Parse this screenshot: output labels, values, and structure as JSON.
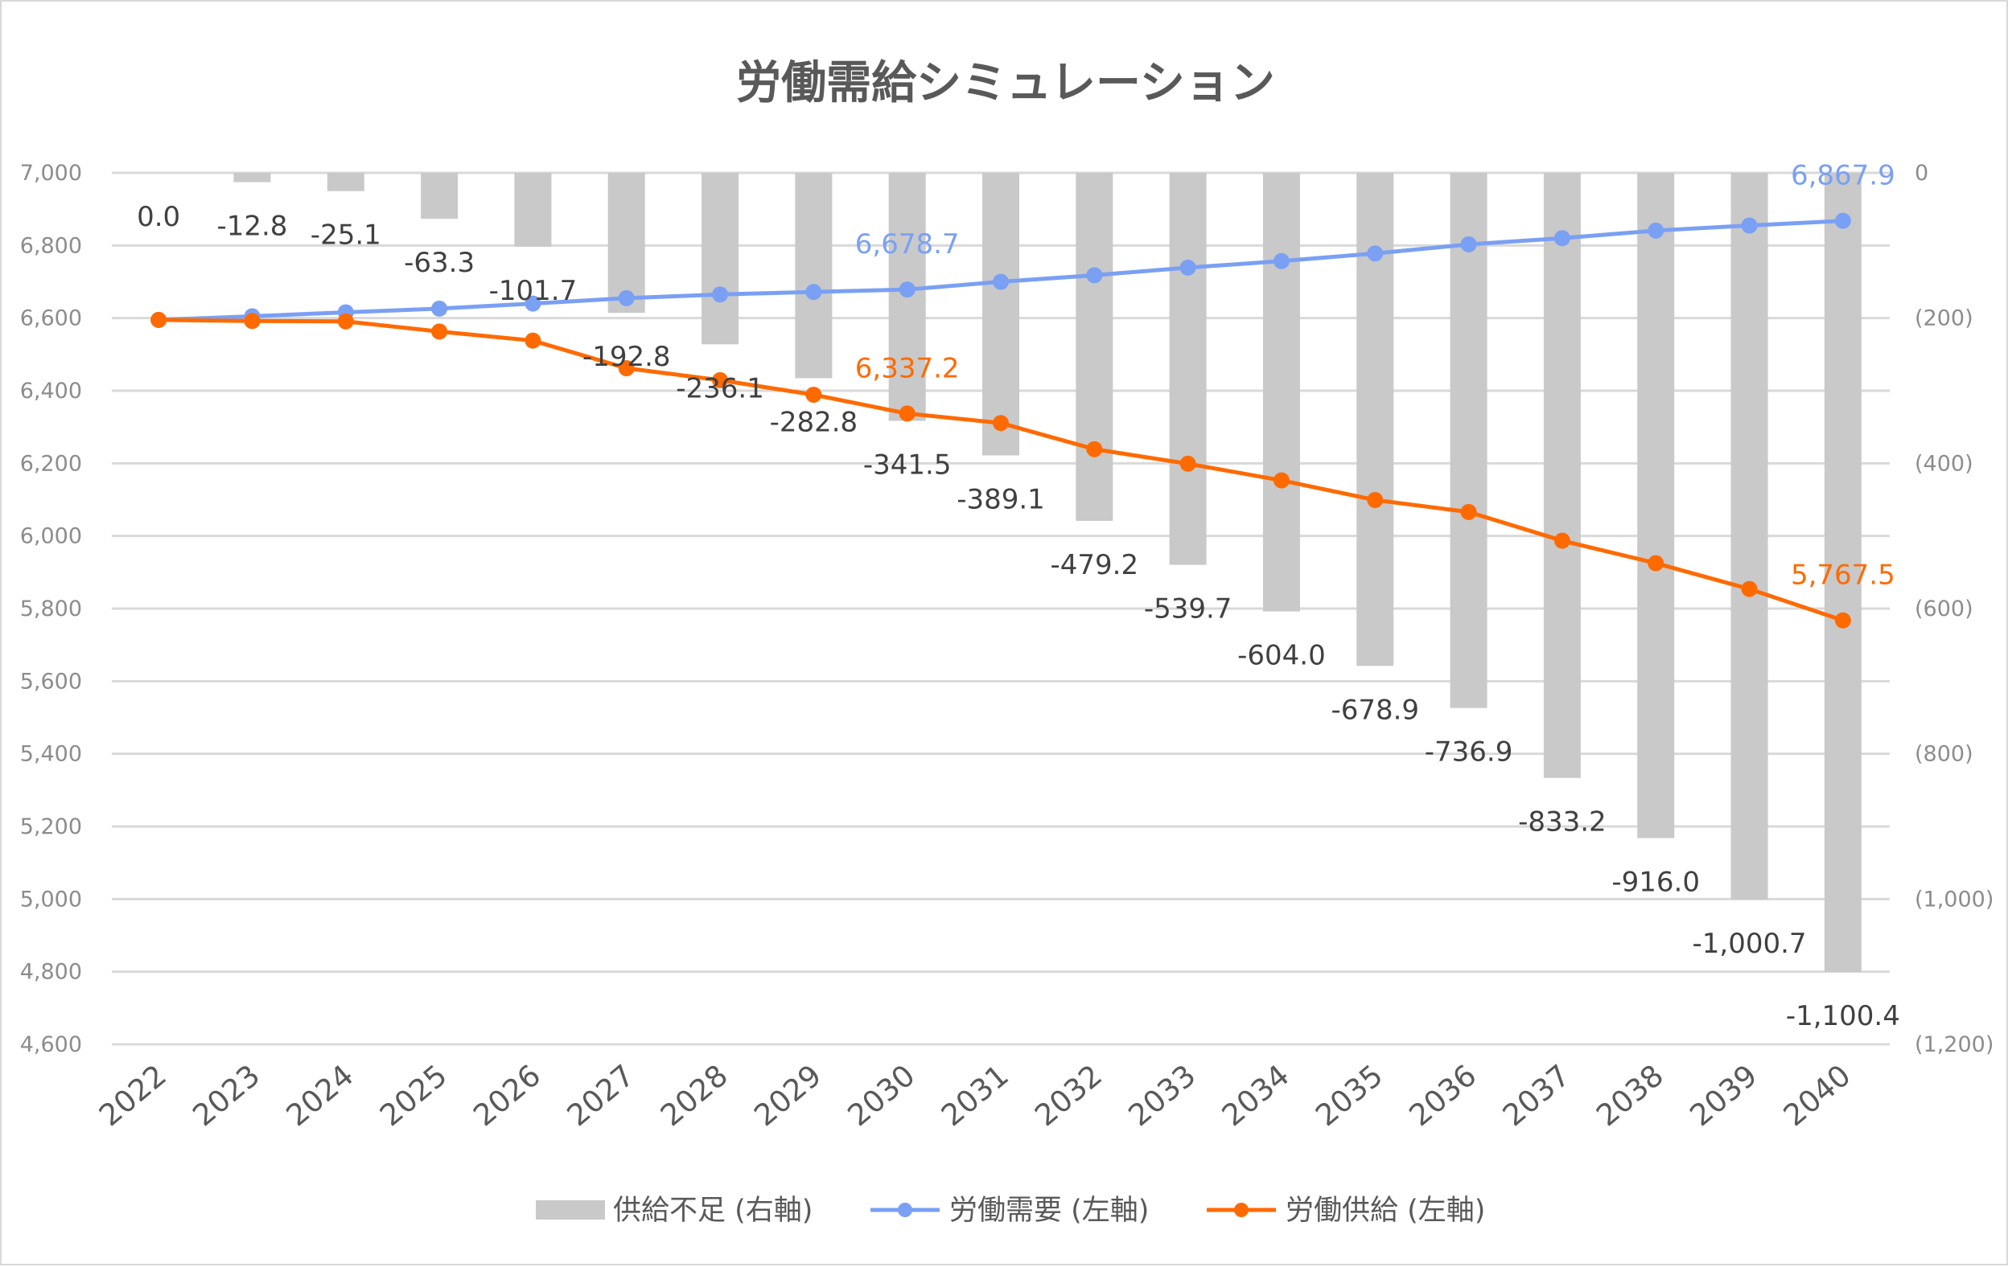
{
  "chart_data": {
    "type": "bar+line",
    "title": "労働需給シミュレーション",
    "categories": [
      "2022",
      "2023",
      "2024",
      "2025",
      "2026",
      "2027",
      "2028",
      "2029",
      "2030",
      "2031",
      "2032",
      "2033",
      "2034",
      "2035",
      "2036",
      "2037",
      "2038",
      "2039",
      "2040"
    ],
    "series": [
      {
        "name": "供給不足 (右軸)",
        "type": "bar",
        "axis": "right",
        "color": "#c9c9c9",
        "values": [
          0.0,
          -12.8,
          -25.1,
          -63.3,
          -101.7,
          -192.8,
          -236.1,
          -282.8,
          -341.5,
          -389.1,
          -479.2,
          -539.7,
          -604.0,
          -678.9,
          -736.9,
          -833.2,
          -916.0,
          -1000.7,
          -1100.4
        ],
        "labels": [
          "0.0",
          "-12.8",
          "-25.1",
          "-63.3",
          "-101.7",
          "-192.8",
          "-236.1",
          "-282.8",
          "-341.5",
          "-389.1",
          "-479.2",
          "-539.7",
          "-604.0",
          "-678.9",
          "-736.9",
          "-833.2",
          "-916.0",
          "-1,000.7",
          "-1,100.4"
        ]
      },
      {
        "name": "労働需要 (左軸)",
        "type": "line",
        "axis": "left",
        "color": "#7aa0f4",
        "values": [
          6595,
          6605,
          6616,
          6626,
          6640,
          6655,
          6665,
          6672,
          6678.7,
          6700,
          6718,
          6739,
          6757,
          6778,
          6803,
          6820,
          6841,
          6855,
          6867.9
        ],
        "labels": {
          "8": "6,678.7",
          "18": "6,867.9"
        }
      },
      {
        "name": "労働供給 (左軸)",
        "type": "line",
        "axis": "left",
        "color": "#ff6a00",
        "values": [
          6595,
          6592,
          6591,
          6563,
          6538,
          6462,
          6429,
          6389,
          6337.2,
          6311,
          6239,
          6199,
          6153,
          6099,
          6066,
          5987,
          5925,
          5854,
          5767.5
        ],
        "labels": {
          "8": "6,337.2",
          "18": "5,767.5"
        }
      }
    ],
    "left_axis": {
      "ylim": [
        4600,
        7000
      ],
      "ticks": [
        "7,000",
        "6,800",
        "6,600",
        "6,400",
        "6,200",
        "6,000",
        "5,800",
        "5,600",
        "5,400",
        "5,200",
        "5,000",
        "4,800",
        "4,600"
      ]
    },
    "right_axis": {
      "ylim": [
        -1200,
        0
      ],
      "ticks": [
        "0",
        "(200)",
        "(400)",
        "(600)",
        "(800)",
        "(1,000)",
        "(1,200)"
      ]
    },
    "grid": true,
    "legend_position": "bottom"
  }
}
